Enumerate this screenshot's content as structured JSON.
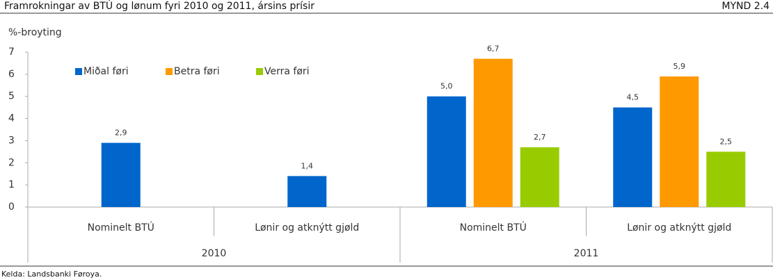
{
  "chart_data": {
    "type": "bar",
    "title": "Framrokningar av BTÚ og lønum fyri 2010 og 2011, ársins prísir",
    "figure_id": "MYND 2.4",
    "y_label": "%-broyting",
    "source": "Kelda: Landsbanki Føroya.",
    "categories": [
      "Nominelt BTÚ",
      "Lønir og atknýtt gjøld",
      "Nominelt BTÚ",
      "Lønir og atknýtt gjøld"
    ],
    "groups": [
      "2010",
      "2011"
    ],
    "series": [
      {
        "name": "Miðal føri",
        "color": "#0066cc",
        "values": [
          2.9,
          1.4,
          5.0,
          4.5
        ],
        "value_labels": [
          "2,9",
          "1,4",
          "5,0",
          "4,5"
        ]
      },
      {
        "name": "Betra føri",
        "color": "#ff9900",
        "values": [
          null,
          null,
          6.7,
          5.9
        ],
        "value_labels": [
          null,
          null,
          "6,7",
          "5,9"
        ]
      },
      {
        "name": "Verra føri",
        "color": "#99cc00",
        "values": [
          null,
          null,
          2.7,
          2.5
        ],
        "value_labels": [
          null,
          null,
          "2,7",
          "2,5"
        ]
      }
    ],
    "ylim": [
      0,
      7
    ],
    "yticks": [
      0,
      1,
      2,
      3,
      4,
      5,
      6,
      7
    ],
    "grid": false,
    "legend": "top-left"
  }
}
